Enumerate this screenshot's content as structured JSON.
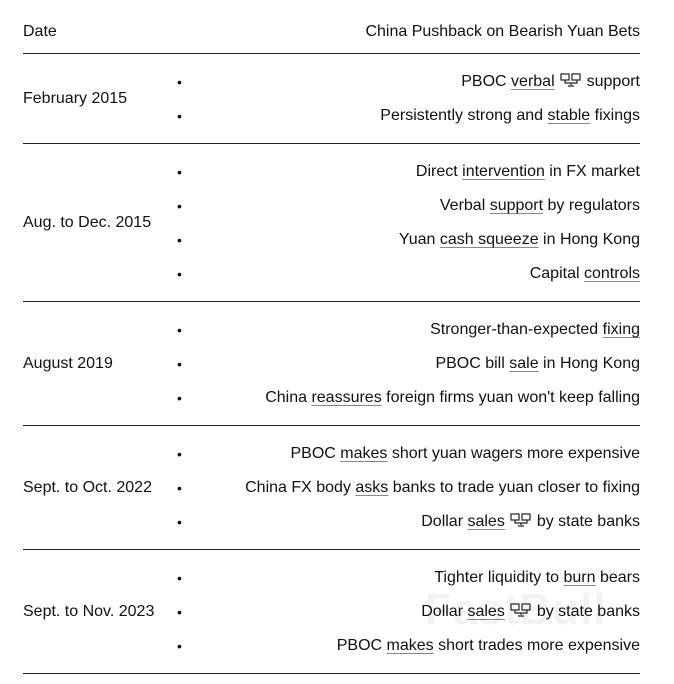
{
  "header": {
    "date": "Date",
    "title": "China Pushback on Bearish Yuan Bets"
  },
  "groups": [
    {
      "date": "February 2015",
      "items": [
        [
          {
            "t": "PBOC "
          },
          {
            "t": "verbal",
            "u": true
          },
          {
            "icon": "terminal-link-icon"
          },
          {
            "t": "support"
          }
        ],
        [
          {
            "t": "Persistently strong and "
          },
          {
            "t": "stable",
            "u": true
          },
          {
            "t": " fixings"
          }
        ]
      ]
    },
    {
      "date": "Aug. to Dec. 2015",
      "items": [
        [
          {
            "t": "Direct "
          },
          {
            "t": "intervention",
            "u": true
          },
          {
            "t": " in FX market"
          }
        ],
        [
          {
            "t": "Verbal "
          },
          {
            "t": "support",
            "u": true
          },
          {
            "t": " by regulators"
          }
        ],
        [
          {
            "t": "Yuan "
          },
          {
            "t": "cash squeeze",
            "u": true
          },
          {
            "t": " in Hong Kong"
          }
        ],
        [
          {
            "t": "Capital "
          },
          {
            "t": "controls",
            "u": true
          }
        ]
      ]
    },
    {
      "date": "August 2019",
      "items": [
        [
          {
            "t": "Stronger-than-expected "
          },
          {
            "t": "fixing",
            "u": true
          }
        ],
        [
          {
            "t": "PBOC bill "
          },
          {
            "t": "sale",
            "u": true
          },
          {
            "t": " in Hong Kong"
          }
        ],
        [
          {
            "t": "China "
          },
          {
            "t": "reassures",
            "u": true
          },
          {
            "t": " foreign firms yuan won't keep falling"
          }
        ]
      ]
    },
    {
      "date": "Sept. to Oct. 2022",
      "items": [
        [
          {
            "t": "PBOC "
          },
          {
            "t": "makes",
            "u": true
          },
          {
            "t": " short yuan wagers more expensive"
          }
        ],
        [
          {
            "t": "China FX body "
          },
          {
            "t": "asks",
            "u": true
          },
          {
            "t": " banks to trade yuan closer to fixing"
          }
        ],
        [
          {
            "t": "Dollar "
          },
          {
            "t": "sales",
            "u": true
          },
          {
            "icon": "terminal-link-icon"
          },
          {
            "t": "by state banks"
          }
        ]
      ]
    },
    {
      "date": "Sept. to Nov. 2023",
      "items": [
        [
          {
            "t": "Tighter liquidity to "
          },
          {
            "t": "burn",
            "u": true
          },
          {
            "t": " bears"
          }
        ],
        [
          {
            "t": "Dollar "
          },
          {
            "t": "sales",
            "u": true
          },
          {
            "icon": "terminal-link-icon"
          },
          {
            "t": "by state banks"
          }
        ],
        [
          {
            "t": "PBOC "
          },
          {
            "t": "makes",
            "u": true
          },
          {
            "t": " short trades more expensive"
          }
        ]
      ]
    }
  ],
  "bullet": "•",
  "watermark": "FastBull"
}
